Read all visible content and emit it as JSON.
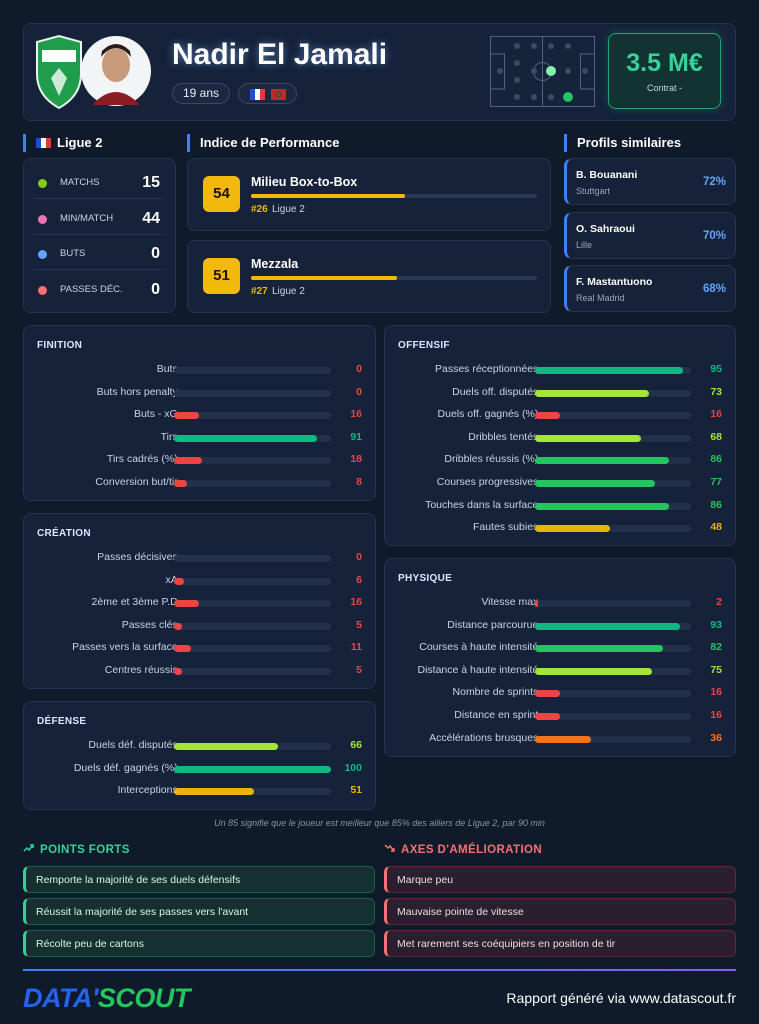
{
  "header": {
    "name": "Nadir El Jamali",
    "age": "19 ans",
    "market_value": "3.5 M€",
    "contract": "Contrat -"
  },
  "league_stats": {
    "title": "Ligue 2",
    "rows": [
      {
        "label": "MATCHS",
        "value": 15
      },
      {
        "label": "MIN/MATCH",
        "value": 44
      },
      {
        "label": "BUTS",
        "value": 0
      },
      {
        "label": "PASSES DÉC.",
        "value": 0
      }
    ]
  },
  "performance": {
    "title": "Indice de Performance",
    "profiles": [
      {
        "score": 54,
        "role": "Milieu Box-to-Box",
        "rank": "#26",
        "league": "Ligue 2"
      },
      {
        "score": 51,
        "role": "Mezzala",
        "rank": "#27",
        "league": "Ligue 2"
      }
    ]
  },
  "similar": {
    "title": "Profils similaires",
    "players": [
      {
        "name": "B. Bouanani",
        "club": "Stuttgart",
        "similarity": "72%"
      },
      {
        "name": "O. Sahraoui",
        "club": "Lille",
        "similarity": "70%"
      },
      {
        "name": "F. Mastantuono",
        "club": "Real Madrid",
        "similarity": "68%"
      }
    ]
  },
  "panels": [
    {
      "title": "FINITION",
      "rows": [
        {
          "label": "Buts",
          "value": 0
        },
        {
          "label": "Buts hors penalty",
          "value": 0
        },
        {
          "label": "Buts - xG",
          "value": 16
        },
        {
          "label": "Tirs",
          "value": 91
        },
        {
          "label": "Tirs cadrés (%)",
          "value": 18
        },
        {
          "label": "Conversion but/tir",
          "value": 8
        }
      ]
    },
    {
      "title": "CRÉATION",
      "rows": [
        {
          "label": "Passes décisives",
          "value": 0
        },
        {
          "label": "xA",
          "value": 6
        },
        {
          "label": "2ème et 3ème P.D",
          "value": 16
        },
        {
          "label": "Passes clés",
          "value": 5
        },
        {
          "label": "Passes vers la surface",
          "value": 11
        },
        {
          "label": "Centres réussis",
          "value": 5
        }
      ]
    },
    {
      "title": "DÉFENSE",
      "rows": [
        {
          "label": "Duels déf. disputés",
          "value": 66
        },
        {
          "label": "Duels déf. gagnés (%)",
          "value": 100
        },
        {
          "label": "Interceptions",
          "value": 51
        }
      ]
    },
    {
      "title": "OFFENSIF",
      "rows": [
        {
          "label": "Passes réceptionnées",
          "value": 95
        },
        {
          "label": "Duels off. disputés",
          "value": 73
        },
        {
          "label": "Duels off. gagnés (%)",
          "value": 16
        },
        {
          "label": "Dribbles tentés",
          "value": 68
        },
        {
          "label": "Dribbles réussis (%)",
          "value": 86
        },
        {
          "label": "Courses progressives",
          "value": 77
        },
        {
          "label": "Touches dans la surface",
          "value": 86
        },
        {
          "label": "Fautes subies",
          "value": 48
        }
      ]
    },
    {
      "title": "PHYSIQUE",
      "rows": [
        {
          "label": "Vitesse max",
          "value": 2
        },
        {
          "label": "Distance parcourue",
          "value": 93
        },
        {
          "label": "Courses à haute intensité",
          "value": 82
        },
        {
          "label": "Distance à haute intensité",
          "value": 75
        },
        {
          "label": "Nombre de sprints",
          "value": 16
        },
        {
          "label": "Distance en sprint",
          "value": 16
        },
        {
          "label": "Accélérations brusques",
          "value": 36
        }
      ]
    }
  ],
  "note": "Un 85 signifie que le joueur est meilleur que 85% des ailiers de Ligue 2, par 90 min",
  "strengths": {
    "title": "POINTS FORTS",
    "items": [
      "Remporte la majorité de ses duels défensifs",
      "Réussit la majorité de ses passes vers l'avant",
      "Récolte peu de cartons"
    ]
  },
  "improvements": {
    "title": "AXES D'AMÉLIORATION",
    "items": [
      "Marque peu",
      "Mauvaise pointe de vitesse",
      "Met rarement ses coéquipiers en position de tir"
    ]
  },
  "footer": {
    "logo_left": "DATA'",
    "logo_right": "SCOUT",
    "text": "Rapport généré via www.datascout.fr"
  }
}
